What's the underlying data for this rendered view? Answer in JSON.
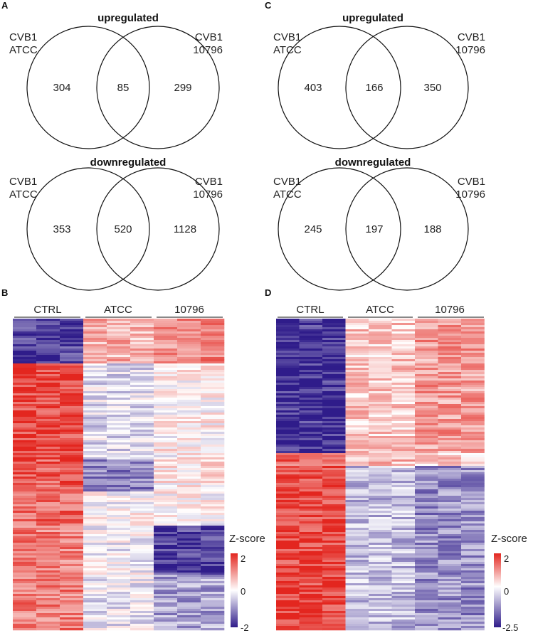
{
  "panels": {
    "A": "A",
    "B": "B",
    "C": "C",
    "D": "D"
  },
  "venn_A_up": {
    "title": "upregulated",
    "left_set": [
      "CVB1",
      "ATCC"
    ],
    "right_set": [
      "CVB1",
      "10796"
    ],
    "left_only": "304",
    "overlap": "85",
    "right_only": "299"
  },
  "venn_A_down": {
    "title": "downregulated",
    "left_set": [
      "CVB1",
      "ATCC"
    ],
    "right_set": [
      "CVB1",
      "10796"
    ],
    "left_only": "353",
    "overlap": "520",
    "right_only": "1128"
  },
  "venn_C_up": {
    "title": "upregulated",
    "left_set": [
      "CVB1",
      "ATCC"
    ],
    "right_set": [
      "CVB1",
      "10796"
    ],
    "left_only": "403",
    "overlap": "166",
    "right_only": "350"
  },
  "venn_C_down": {
    "title": "downregulated",
    "left_set": [
      "CVB1",
      "ATCC"
    ],
    "right_set": [
      "CVB1",
      "10796"
    ],
    "left_only": "245",
    "overlap": "197",
    "right_only": "188"
  },
  "heatmap_B": {
    "groups": [
      "CTRL",
      "ATCC",
      "10796"
    ],
    "colorbar_label": "Z-score",
    "ticks": [
      "2",
      "0",
      "-2"
    ],
    "min": -2,
    "max": 2
  },
  "heatmap_D": {
    "groups": [
      "CTRL",
      "ATCC",
      "10796"
    ],
    "colorbar_label": "Z-score",
    "ticks": [
      "2",
      "0",
      "-2.5"
    ],
    "min": -2.5,
    "max": 2
  },
  "colors": {
    "high": "#e3261f",
    "mid": "#ffffff",
    "low": "#2f1c8a"
  }
}
